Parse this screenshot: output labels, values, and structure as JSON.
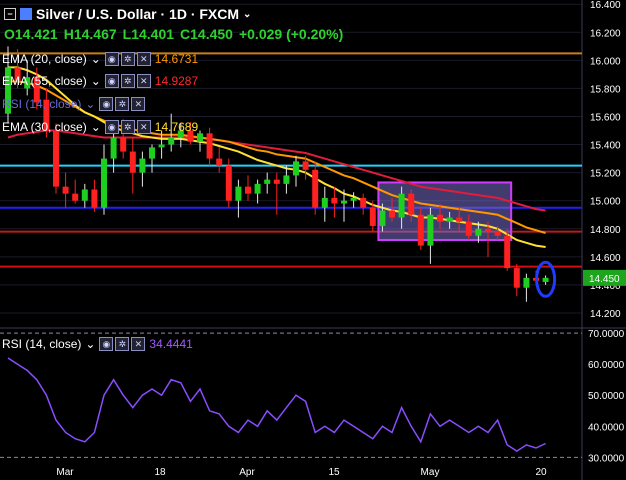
{
  "header": {
    "title": "Silver / U.S. Dollar · 1D · FXCM",
    "open": "O14.421",
    "high": "H14.467",
    "low": "L14.401",
    "close": "C14.450",
    "change": "+0.029 (+0.20%)"
  },
  "indicators": [
    {
      "label": "EMA (20, close)",
      "value": "14.6731",
      "color": "#ff9800"
    },
    {
      "label": "EMA (55, close)",
      "value": "14.9287",
      "color": "#ff2a2a"
    },
    {
      "label": "RSI (14, close)",
      "value": "",
      "color": "#7a5cff"
    },
    {
      "label": "EMA (30, close)",
      "value": "14.7689",
      "color": "#ffe033"
    }
  ],
  "rsi_panel": {
    "label": "RSI (14, close)",
    "value": "34.4441",
    "color": "#a05cff"
  },
  "price_tag": "14.450",
  "colors": {
    "up": "#1fcf1f",
    "down": "#ff2020",
    "ema20": "#ff9800",
    "ema30": "#ffe033",
    "ema55": "#e21c3c",
    "rsi": "#8a4dff",
    "box": "#d03cff"
  },
  "chart_data": {
    "type": "candlestick",
    "x_ticks": [
      "Mar",
      "18",
      "Apr",
      "15",
      "May",
      "20"
    ],
    "price_ticks": [
      "16.400",
      "16.200",
      "16.000",
      "15.800",
      "15.600",
      "15.400",
      "15.200",
      "15.000",
      "14.800",
      "14.600",
      "14.400",
      "14.200"
    ],
    "ylim": [
      14.1,
      16.43
    ],
    "candles": [
      {
        "o": 15.62,
        "h": 16.1,
        "l": 15.55,
        "c": 15.95
      },
      {
        "o": 15.95,
        "h": 16.08,
        "l": 15.8,
        "c": 15.85
      },
      {
        "o": 15.8,
        "h": 16.0,
        "l": 15.75,
        "c": 15.88
      },
      {
        "o": 15.88,
        "h": 15.95,
        "l": 15.65,
        "c": 15.7
      },
      {
        "o": 15.72,
        "h": 15.8,
        "l": 15.45,
        "c": 15.5
      },
      {
        "o": 15.5,
        "h": 15.55,
        "l": 15.05,
        "c": 15.1
      },
      {
        "o": 15.1,
        "h": 15.2,
        "l": 14.95,
        "c": 15.05
      },
      {
        "o": 15.05,
        "h": 15.15,
        "l": 14.98,
        "c": 15.0
      },
      {
        "o": 15.0,
        "h": 15.12,
        "l": 14.95,
        "c": 15.08
      },
      {
        "o": 15.08,
        "h": 15.15,
        "l": 14.92,
        "c": 14.95
      },
      {
        "o": 14.95,
        "h": 15.4,
        "l": 14.9,
        "c": 15.3
      },
      {
        "o": 15.3,
        "h": 15.55,
        "l": 15.2,
        "c": 15.45
      },
      {
        "o": 15.45,
        "h": 15.58,
        "l": 15.3,
        "c": 15.35
      },
      {
        "o": 15.35,
        "h": 15.45,
        "l": 15.05,
        "c": 15.2
      },
      {
        "o": 15.2,
        "h": 15.35,
        "l": 15.1,
        "c": 15.3
      },
      {
        "o": 15.3,
        "h": 15.4,
        "l": 15.2,
        "c": 15.38
      },
      {
        "o": 15.38,
        "h": 15.5,
        "l": 15.3,
        "c": 15.4
      },
      {
        "o": 15.4,
        "h": 15.62,
        "l": 15.35,
        "c": 15.45
      },
      {
        "o": 15.45,
        "h": 15.55,
        "l": 15.38,
        "c": 15.5
      },
      {
        "o": 15.5,
        "h": 15.56,
        "l": 15.4,
        "c": 15.42
      },
      {
        "o": 15.42,
        "h": 15.5,
        "l": 15.35,
        "c": 15.48
      },
      {
        "o": 15.48,
        "h": 15.52,
        "l": 15.25,
        "c": 15.3
      },
      {
        "o": 15.3,
        "h": 15.38,
        "l": 15.2,
        "c": 15.25
      },
      {
        "o": 15.25,
        "h": 15.3,
        "l": 14.95,
        "c": 15.0
      },
      {
        "o": 15.0,
        "h": 15.15,
        "l": 14.88,
        "c": 15.1
      },
      {
        "o": 15.1,
        "h": 15.18,
        "l": 15.0,
        "c": 15.05
      },
      {
        "o": 15.05,
        "h": 15.15,
        "l": 14.98,
        "c": 15.12
      },
      {
        "o": 15.12,
        "h": 15.2,
        "l": 15.05,
        "c": 15.15
      },
      {
        "o": 15.15,
        "h": 15.2,
        "l": 14.9,
        "c": 15.12
      },
      {
        "o": 15.12,
        "h": 15.25,
        "l": 15.05,
        "c": 15.18
      },
      {
        "o": 15.18,
        "h": 15.32,
        "l": 15.1,
        "c": 15.28
      },
      {
        "o": 15.28,
        "h": 15.32,
        "l": 15.15,
        "c": 15.22
      },
      {
        "o": 15.22,
        "h": 15.28,
        "l": 14.9,
        "c": 14.95
      },
      {
        "o": 14.95,
        "h": 15.1,
        "l": 14.85,
        "c": 15.02
      },
      {
        "o": 15.02,
        "h": 15.1,
        "l": 14.88,
        "c": 14.98
      },
      {
        "o": 14.98,
        "h": 15.08,
        "l": 14.85,
        "c": 15.0
      },
      {
        "o": 15.0,
        "h": 15.06,
        "l": 14.95,
        "c": 15.02
      },
      {
        "o": 15.02,
        "h": 15.05,
        "l": 14.9,
        "c": 14.95
      },
      {
        "o": 14.95,
        "h": 15.0,
        "l": 14.78,
        "c": 14.82
      },
      {
        "o": 14.82,
        "h": 14.98,
        "l": 14.78,
        "c": 14.93
      },
      {
        "o": 14.93,
        "h": 15.02,
        "l": 14.85,
        "c": 14.88
      },
      {
        "o": 14.88,
        "h": 15.1,
        "l": 14.8,
        "c": 15.05
      },
      {
        "o": 15.05,
        "h": 15.08,
        "l": 14.85,
        "c": 14.9
      },
      {
        "o": 14.9,
        "h": 14.95,
        "l": 14.65,
        "c": 14.68
      },
      {
        "o": 14.68,
        "h": 14.95,
        "l": 14.55,
        "c": 14.9
      },
      {
        "o": 14.9,
        "h": 14.98,
        "l": 14.8,
        "c": 14.85
      },
      {
        "o": 14.85,
        "h": 14.92,
        "l": 14.8,
        "c": 14.88
      },
      {
        "o": 14.88,
        "h": 14.95,
        "l": 14.78,
        "c": 14.85
      },
      {
        "o": 14.85,
        "h": 14.9,
        "l": 14.72,
        "c": 14.75
      },
      {
        "o": 14.75,
        "h": 14.85,
        "l": 14.7,
        "c": 14.8
      },
      {
        "o": 14.8,
        "h": 14.85,
        "l": 14.6,
        "c": 14.78
      },
      {
        "o": 14.78,
        "h": 14.82,
        "l": 14.72,
        "c": 14.75
      },
      {
        "o": 14.75,
        "h": 14.8,
        "l": 14.5,
        "c": 14.52
      },
      {
        "o": 14.52,
        "h": 14.55,
        "l": 14.32,
        "c": 14.38
      },
      {
        "o": 14.38,
        "h": 14.48,
        "l": 14.28,
        "c": 14.45
      },
      {
        "o": 14.45,
        "h": 14.5,
        "l": 14.4,
        "c": 14.43
      },
      {
        "o": 14.421,
        "h": 14.467,
        "l": 14.401,
        "c": 14.45
      }
    ],
    "ema20": [
      15.95,
      15.95,
      15.93,
      15.9,
      15.86,
      15.8,
      15.74,
      15.68,
      15.63,
      15.6,
      15.56,
      15.52,
      15.5,
      15.48,
      15.46,
      15.45,
      15.44,
      15.44,
      15.44,
      15.43,
      15.42,
      15.41,
      15.39,
      15.37,
      15.35,
      15.32,
      15.29,
      15.27,
      15.25,
      15.23,
      15.22,
      15.2,
      15.16,
      15.12,
      15.09,
      15.05,
      15.03,
      15.0,
      14.97,
      14.95,
      14.93,
      14.92,
      14.9,
      14.88,
      14.88,
      14.87,
      14.86,
      14.85,
      14.84,
      14.83,
      14.82,
      14.8,
      14.76,
      14.72,
      14.7,
      14.68,
      14.67
    ],
    "ema30": [
      15.85,
      15.85,
      15.84,
      15.82,
      15.79,
      15.75,
      15.71,
      15.67,
      15.63,
      15.6,
      15.57,
      15.54,
      15.53,
      15.51,
      15.49,
      15.48,
      15.47,
      15.47,
      15.47,
      15.46,
      15.45,
      15.44,
      15.43,
      15.42,
      15.4,
      15.38,
      15.36,
      15.35,
      15.33,
      15.32,
      15.31,
      15.3,
      15.27,
      15.24,
      15.21,
      15.18,
      15.16,
      15.13,
      15.1,
      15.07,
      15.04,
      15.02,
      15.0,
      14.98,
      14.97,
      14.96,
      14.95,
      14.94,
      14.93,
      14.92,
      14.91,
      14.9,
      14.87,
      14.84,
      14.81,
      14.79,
      14.77
    ],
    "ema55": [
      15.45,
      15.47,
      15.48,
      15.49,
      15.5,
      15.5,
      15.49,
      15.48,
      15.47,
      15.46,
      15.45,
      15.45,
      15.45,
      15.45,
      15.45,
      15.45,
      15.45,
      15.45,
      15.45,
      15.45,
      15.45,
      15.44,
      15.43,
      15.42,
      15.41,
      15.4,
      15.39,
      15.38,
      15.37,
      15.36,
      15.35,
      15.34,
      15.32,
      15.3,
      15.28,
      15.26,
      15.24,
      15.22,
      15.2,
      15.18,
      15.16,
      15.14,
      15.12,
      15.1,
      15.09,
      15.08,
      15.07,
      15.06,
      15.05,
      15.04,
      15.03,
      15.02,
      15.0,
      14.98,
      14.96,
      14.94,
      14.93
    ],
    "rsi_ticks": [
      "70.0000",
      "60.0000",
      "50.0000",
      "40.0000",
      "30.0000"
    ],
    "rsi_ylim": [
      28.5,
      71.0
    ],
    "rsi": [
      62,
      60,
      58,
      55,
      50,
      42,
      38,
      36,
      35,
      38,
      50,
      55,
      50,
      46,
      50,
      52,
      50,
      55,
      54,
      48,
      52,
      45,
      44,
      40,
      38,
      42,
      40,
      45,
      42,
      46,
      50,
      48,
      38,
      40,
      38,
      42,
      40,
      38,
      36,
      40,
      38,
      46,
      40,
      35,
      44,
      40,
      42,
      40,
      38,
      40,
      38,
      42,
      34,
      32,
      34,
      33,
      34.4441
    ],
    "hlines": [
      {
        "y": 16.05,
        "color": "#c87f1e"
      },
      {
        "y": 15.25,
        "color": "#22d3ff"
      },
      {
        "y": 14.95,
        "color": "#2020ff"
      },
      {
        "y": 14.78,
        "color": "#b81c1c"
      },
      {
        "y": 14.53,
        "color": "#d01010"
      }
    ],
    "box": {
      "x0": 39,
      "x1": 52,
      "y0": 14.72,
      "y1": 15.13
    },
    "ellipse_index": 56
  }
}
